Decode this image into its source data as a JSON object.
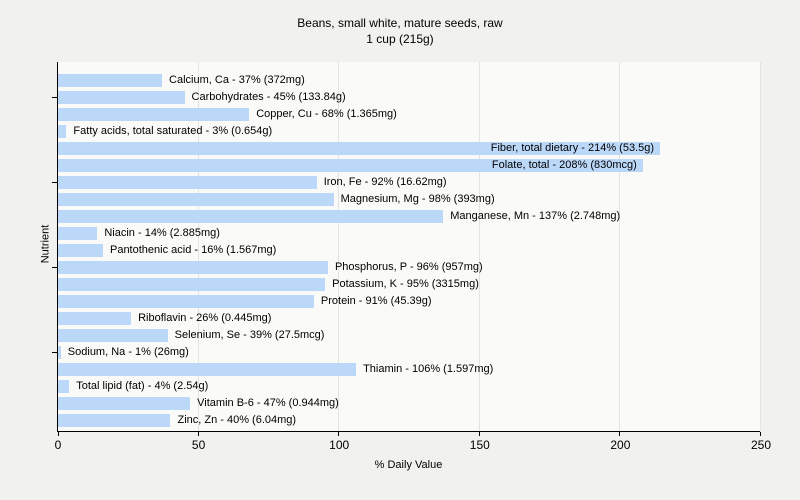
{
  "title": {
    "line1": "Beans, small white, mature seeds, raw",
    "line2": "1 cup (215g)"
  },
  "chart_data": {
    "type": "bar",
    "orientation": "horizontal",
    "title": "Beans, small white, mature seeds, raw — 1 cup (215g)",
    "xlabel": "% Daily Value",
    "ylabel": "Nutrient",
    "xlim": [
      0,
      250
    ],
    "x_ticks": [
      0,
      50,
      100,
      150,
      200,
      250
    ],
    "grid": "vertical-at-x-ticks",
    "legend": "none",
    "bar_color": "#bcd8f9",
    "plot_bg_color": "#fafaf8",
    "page_bg_color": "#f1f1ee",
    "gridline_color": "#e3e3df",
    "categories": [
      "Calcium, Ca",
      "Carbohydrates",
      "Copper, Cu",
      "Fatty acids, total saturated",
      "Fiber, total dietary",
      "Folate, total",
      "Iron, Fe",
      "Magnesium, Mg",
      "Manganese, Mn",
      "Niacin",
      "Pantothenic acid",
      "Phosphorus, P",
      "Potassium, K",
      "Protein",
      "Riboflavin",
      "Selenium, Se",
      "Sodium, Na",
      "Thiamin",
      "Total lipid (fat)",
      "Vitamin B-6",
      "Zinc, Zn"
    ],
    "values": [
      37,
      45,
      68,
      3,
      214,
      208,
      92,
      98,
      137,
      14,
      16,
      96,
      95,
      91,
      26,
      39,
      1,
      106,
      4,
      47,
      40
    ],
    "amounts": [
      "372mg",
      "133.84g",
      "1.365mg",
      "0.654g",
      "53.5g",
      "830mcg",
      "16.62mg",
      "393mg",
      "2.748mg",
      "2.885mg",
      "1.567mg",
      "957mg",
      "3315mg",
      "45.39g",
      "0.445mg",
      "27.5mcg",
      "26mg",
      "1.597mg",
      "2.54g",
      "0.944mg",
      "6.04mg"
    ],
    "labels": [
      "Calcium, Ca - 37% (372mg)",
      "Carbohydrates - 45% (133.84g)",
      "Copper, Cu - 68% (1.365mg)",
      "Fatty acids, total saturated - 3% (0.654g)",
      "Fiber, total dietary - 214% (53.5g)",
      "Folate, total - 208% (830mcg)",
      "Iron, Fe - 92% (16.62mg)",
      "Magnesium, Mg - 98% (393mg)",
      "Manganese, Mn - 137% (2.748mg)",
      "Niacin - 14% (2.885mg)",
      "Pantothenic acid - 16% (1.567mg)",
      "Phosphorus, P - 96% (957mg)",
      "Potassium, K - 95% (3315mg)",
      "Protein - 91% (45.39g)",
      "Riboflavin - 26% (0.445mg)",
      "Selenium, Se - 39% (27.5mcg)",
      "Sodium, Na - 1% (26mg)",
      "Thiamin - 106% (1.597mg)",
      "Total lipid (fat) - 4% (2.54g)",
      "Vitamin B-6 - 47% (0.944mg)",
      "Zinc, Zn - 40% (6.04mg)"
    ],
    "y_tick_rows": [
      1,
      6,
      11,
      16
    ]
  }
}
